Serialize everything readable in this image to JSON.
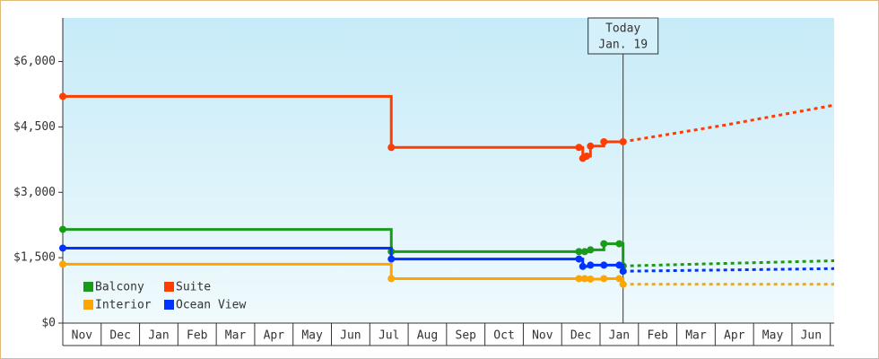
{
  "chart_data": {
    "type": "step-line",
    "categories": [
      "Nov",
      "Dec",
      "Jan",
      "Feb",
      "Mar",
      "Apr",
      "May",
      "Jun",
      "Jul",
      "Aug",
      "Sep",
      "Oct",
      "Nov",
      "Dec",
      "Jan",
      "Feb",
      "Mar",
      "Apr",
      "May",
      "Jun"
    ],
    "xlim": [
      0,
      20.1
    ],
    "ylim": [
      0,
      7000
    ],
    "yticks": [
      {
        "value": 0,
        "label": "$0"
      },
      {
        "value": 1500,
        "label": "$1,500"
      },
      {
        "value": 3000,
        "label": "$3,000"
      },
      {
        "value": 4500,
        "label": "$4,500"
      },
      {
        "value": 6000,
        "label": "$6,000"
      }
    ],
    "annotation": {
      "x": 14.6,
      "lines": [
        "Today",
        "Jan. 19"
      ]
    },
    "series": [
      {
        "name": "Balcony",
        "color": "#1a9a1a",
        "x": [
          0,
          8.56,
          13.45,
          13.6,
          13.75,
          14.1,
          14.5,
          14.6
        ],
        "values": [
          2150,
          1640,
          1640,
          1640,
          1680,
          1820,
          1820,
          1310
        ],
        "forecast": {
          "x": [
            14.6,
            17.3,
            20.1
          ],
          "values": [
            1310,
            1370,
            1430
          ]
        }
      },
      {
        "name": "Suite",
        "color": "#ff3d00",
        "x": [
          0,
          8.56,
          13.45,
          13.55,
          13.65,
          13.75,
          14.1,
          14.6
        ],
        "values": [
          5200,
          4030,
          4030,
          3780,
          3830,
          4060,
          4160,
          4160
        ],
        "forecast": {
          "x": [
            14.6,
            17.3,
            20.1
          ],
          "values": [
            4160,
            4550,
            5000
          ]
        }
      },
      {
        "name": "Interior",
        "color": "#ffa500",
        "x": [
          0,
          8.56,
          13.45,
          13.6,
          13.75,
          14.1,
          14.5,
          14.6
        ],
        "values": [
          1350,
          1020,
          1020,
          1020,
          1010,
          1020,
          1020,
          890
        ],
        "forecast": {
          "x": [
            14.6,
            20.1
          ],
          "values": [
            890,
            890
          ]
        }
      },
      {
        "name": "Ocean View",
        "color": "#0033ff",
        "x": [
          0,
          8.56,
          13.45,
          13.55,
          13.75,
          14.1,
          14.5,
          14.6
        ],
        "values": [
          1720,
          1470,
          1470,
          1300,
          1330,
          1330,
          1330,
          1190
        ],
        "forecast": {
          "x": [
            14.6,
            20.1
          ],
          "values": [
            1190,
            1250
          ]
        }
      }
    ]
  }
}
